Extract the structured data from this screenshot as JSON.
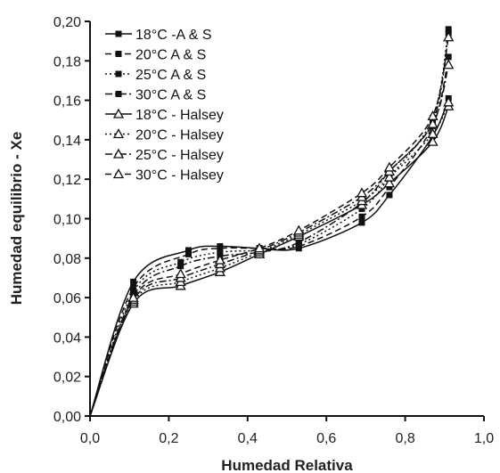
{
  "chart_data": {
    "type": "line",
    "xlabel": "Humedad Relativa",
    "ylabel": "Humedad equilibrio - Xe",
    "xlim": [
      0,
      1.0
    ],
    "ylim": [
      0,
      0.2
    ],
    "xticks": [
      "0,0",
      "0,2",
      "0,4",
      "0,6",
      "0,8",
      "1,0"
    ],
    "yticks": [
      "0,00",
      "0,02",
      "0,04",
      "0,06",
      "0,08",
      "0,10",
      "0,12",
      "0,14",
      "0,16",
      "0,18",
      "0,20"
    ],
    "legend_position": "top-left",
    "grid": false,
    "series": [
      {
        "name": "18°C -A & S",
        "marker": "square-filled",
        "dash": "solid",
        "x": [
          0,
          0.11,
          0.25,
          0.33,
          0.43,
          0.53,
          0.69,
          0.76,
          0.87,
          0.91
        ],
        "y": [
          0,
          0.068,
          0.084,
          0.086,
          0.085,
          0.085,
          0.098,
          0.112,
          0.142,
          0.161
        ]
      },
      {
        "name": "20°C A & S",
        "marker": "square-filled",
        "dash": "dash",
        "x": [
          0,
          0.11,
          0.25,
          0.33,
          0.43,
          0.53,
          0.69,
          0.76,
          0.87,
          0.91
        ],
        "y": [
          0,
          0.065,
          0.082,
          0.085,
          0.085,
          0.086,
          0.101,
          0.116,
          0.147,
          0.182
        ]
      },
      {
        "name": "25°C A & S",
        "marker": "square-filled",
        "dash": "dot",
        "x": [
          0,
          0.11,
          0.23,
          0.33,
          0.43,
          0.53,
          0.69,
          0.76,
          0.87,
          0.91
        ],
        "y": [
          0,
          0.063,
          0.078,
          0.083,
          0.084,
          0.087,
          0.105,
          0.121,
          0.151,
          0.196
        ]
      },
      {
        "name": "30°C A & S",
        "marker": "square-filled",
        "dash": "dashdot",
        "x": [
          0,
          0.11,
          0.23,
          0.33,
          0.43,
          0.53,
          0.69,
          0.76,
          0.87,
          0.91
        ],
        "y": [
          0,
          0.061,
          0.076,
          0.081,
          0.083,
          0.088,
          0.108,
          0.124,
          0.149,
          0.194
        ]
      },
      {
        "name": "18°C - Halsey",
        "marker": "triangle-open",
        "dash": "solid",
        "x": [
          0,
          0.11,
          0.23,
          0.33,
          0.43,
          0.53,
          0.69,
          0.76,
          0.87,
          0.91
        ],
        "y": [
          0,
          0.057,
          0.066,
          0.073,
          0.082,
          0.091,
          0.107,
          0.118,
          0.139,
          0.157
        ]
      },
      {
        "name": "20°C - Halsey",
        "marker": "triangle-open",
        "dash": "dot",
        "x": [
          0,
          0.11,
          0.23,
          0.33,
          0.43,
          0.53,
          0.69,
          0.76,
          0.87,
          0.91
        ],
        "y": [
          0,
          0.058,
          0.068,
          0.075,
          0.083,
          0.092,
          0.109,
          0.121,
          0.143,
          0.159
        ]
      },
      {
        "name": "25°C - Halsey",
        "marker": "triangle-open",
        "dash": "dashdot",
        "x": [
          0,
          0.11,
          0.23,
          0.33,
          0.43,
          0.53,
          0.69,
          0.76,
          0.87,
          0.91
        ],
        "y": [
          0,
          0.059,
          0.07,
          0.077,
          0.084,
          0.093,
          0.111,
          0.124,
          0.148,
          0.178
        ]
      },
      {
        "name": "30°C - Halsey",
        "marker": "triangle-open",
        "dash": "dash",
        "x": [
          0,
          0.11,
          0.23,
          0.33,
          0.43,
          0.53,
          0.69,
          0.76,
          0.87,
          0.91
        ],
        "y": [
          0,
          0.06,
          0.072,
          0.079,
          0.085,
          0.094,
          0.113,
          0.126,
          0.152,
          0.192
        ]
      }
    ]
  }
}
